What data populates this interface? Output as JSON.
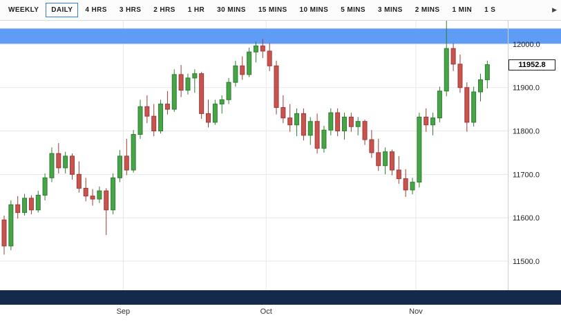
{
  "toolbar": {
    "tabs": [
      {
        "label": "WEEKLY",
        "selected": false
      },
      {
        "label": "DAILY",
        "selected": true
      },
      {
        "label": "4 HRS",
        "selected": false
      },
      {
        "label": "3 HRS",
        "selected": false
      },
      {
        "label": "2 HRS",
        "selected": false
      },
      {
        "label": "1 HR",
        "selected": false
      },
      {
        "label": "30 MINS",
        "selected": false
      },
      {
        "label": "15 MINS",
        "selected": false
      },
      {
        "label": "10 MINS",
        "selected": false
      },
      {
        "label": "5 MINS",
        "selected": false
      },
      {
        "label": "3 MINS",
        "selected": false
      },
      {
        "label": "2 MINS",
        "selected": false
      },
      {
        "label": "1 MIN",
        "selected": false
      },
      {
        "label": "1 S",
        "selected": false
      }
    ],
    "scroll_arrow": "▶"
  },
  "chart": {
    "current_price_label": "11952.8",
    "current_price_value": 11952.8,
    "highlight_band": {
      "price_from": 12001,
      "price_to": 12036,
      "color": "#5e9cf5"
    },
    "colors": {
      "up_fill": "#47a447",
      "up_stroke": "#2e7d32",
      "down_fill": "#c9534f",
      "down_stroke": "#9e3a36",
      "grid": "#e8e8e8",
      "axis_separator": "#cfcfcf",
      "axis_text": "#222222",
      "scrollbar": "#15294d"
    }
  },
  "chart_data": {
    "type": "candlestick",
    "timeframe": "DAILY",
    "title": "",
    "ylim": [
      11433,
      12054
    ],
    "y_range": [
      11433,
      12054
    ],
    "x_start": 6,
    "x_step": 9.85,
    "grid": true,
    "y_ticks": [
      {
        "value": 12000,
        "label": "12000.0"
      },
      {
        "value": 11900,
        "label": "11900.0"
      },
      {
        "value": 11800,
        "label": "11800.0"
      },
      {
        "value": 11700,
        "label": "11700.0"
      },
      {
        "value": 11600,
        "label": "11600.0"
      },
      {
        "value": 11500,
        "label": "11500.0"
      }
    ],
    "x_labels": [
      {
        "label": "Sep",
        "index": 17.5
      },
      {
        "label": "Oct",
        "index": 38.5
      },
      {
        "label": "Nov",
        "index": 60.5
      }
    ],
    "candles": [
      [
        11595,
        11605,
        11515,
        11535
      ],
      [
        11535,
        11640,
        11525,
        11630
      ],
      [
        11630,
        11650,
        11598,
        11612
      ],
      [
        11612,
        11655,
        11605,
        11645
      ],
      [
        11645,
        11652,
        11608,
        11618
      ],
      [
        11618,
        11662,
        11612,
        11652
      ],
      [
        11652,
        11702,
        11640,
        11692
      ],
      [
        11692,
        11762,
        11682,
        11748
      ],
      [
        11748,
        11772,
        11702,
        11715
      ],
      [
        11715,
        11752,
        11702,
        11742
      ],
      [
        11742,
        11748,
        11688,
        11700
      ],
      [
        11700,
        11730,
        11658,
        11668
      ],
      [
        11668,
        11692,
        11638,
        11650
      ],
      [
        11650,
        11666,
        11628,
        11643
      ],
      [
        11643,
        11672,
        11634,
        11662
      ],
      [
        11662,
        11668,
        11560,
        11618
      ],
      [
        11618,
        11702,
        11608,
        11692
      ],
      [
        11692,
        11756,
        11682,
        11742
      ],
      [
        11742,
        11782,
        11698,
        11710
      ],
      [
        11710,
        11802,
        11704,
        11792
      ],
      [
        11792,
        11872,
        11782,
        11856
      ],
      [
        11856,
        11882,
        11818,
        11834
      ],
      [
        11834,
        11862,
        11788,
        11800
      ],
      [
        11800,
        11872,
        11794,
        11862
      ],
      [
        11862,
        11892,
        11838,
        11850
      ],
      [
        11850,
        11942,
        11844,
        11930
      ],
      [
        11930,
        11952,
        11878,
        11894
      ],
      [
        11894,
        11932,
        11884,
        11922
      ],
      [
        11922,
        11942,
        11888,
        11932
      ],
      [
        11932,
        11936,
        11828,
        11840
      ],
      [
        11840,
        11872,
        11808,
        11820
      ],
      [
        11820,
        11872,
        11814,
        11862
      ],
      [
        11862,
        11882,
        11840,
        11872
      ],
      [
        11872,
        11922,
        11862,
        11912
      ],
      [
        11912,
        11962,
        11902,
        11950
      ],
      [
        11950,
        11972,
        11918,
        11930
      ],
      [
        11930,
        11992,
        11924,
        11982
      ],
      [
        11982,
        12006,
        11958,
        11996
      ],
      [
        11996,
        12012,
        11968,
        11984
      ],
      [
        11984,
        12002,
        11938,
        11950
      ],
      [
        11950,
        11962,
        11838,
        11854
      ],
      [
        11854,
        11882,
        11818,
        11830
      ],
      [
        11830,
        11862,
        11798,
        11814
      ],
      [
        11814,
        11852,
        11788,
        11840
      ],
      [
        11840,
        11852,
        11778,
        11790
      ],
      [
        11790,
        11832,
        11768,
        11822
      ],
      [
        11822,
        11840,
        11748,
        11760
      ],
      [
        11760,
        11812,
        11750,
        11802
      ],
      [
        11802,
        11852,
        11790,
        11842
      ],
      [
        11842,
        11852,
        11788,
        11800
      ],
      [
        11800,
        11842,
        11780,
        11832
      ],
      [
        11832,
        11842,
        11798,
        11810
      ],
      [
        11810,
        11832,
        11790,
        11822
      ],
      [
        11822,
        11826,
        11768,
        11780
      ],
      [
        11780,
        11802,
        11738,
        11750
      ],
      [
        11750,
        11782,
        11708,
        11720
      ],
      [
        11720,
        11762,
        11700,
        11752
      ],
      [
        11752,
        11757,
        11698,
        11710
      ],
      [
        11710,
        11742,
        11678,
        11690
      ],
      [
        11690,
        11712,
        11648,
        11664
      ],
      [
        11664,
        11692,
        11654,
        11682
      ],
      [
        11682,
        11842,
        11670,
        11832
      ],
      [
        11832,
        11852,
        11798,
        11814
      ],
      [
        11814,
        11842,
        11790,
        11830
      ],
      [
        11830,
        11902,
        11820,
        11892
      ],
      [
        11892,
        12062,
        11880,
        11990
      ],
      [
        11990,
        12002,
        11938,
        11954
      ],
      [
        11954,
        11976,
        11888,
        11900
      ],
      [
        11900,
        11912,
        11798,
        11820
      ],
      [
        11820,
        11902,
        11810,
        11890
      ],
      [
        11890,
        11932,
        11868,
        11918
      ],
      [
        11918,
        11962,
        11898,
        11952.8
      ]
    ]
  }
}
